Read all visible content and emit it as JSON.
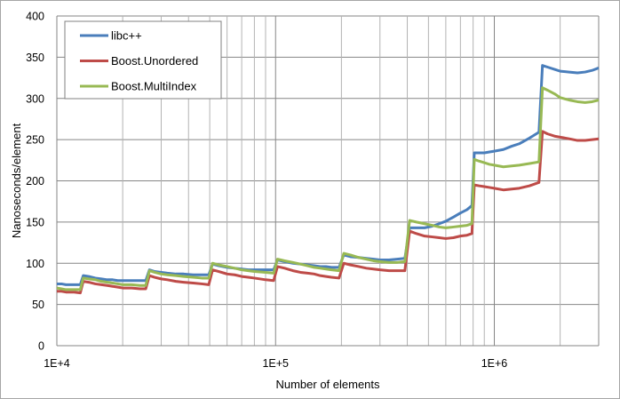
{
  "chart_data": {
    "type": "line",
    "title": "",
    "xlabel": "Number of elements",
    "ylabel": "Nanoseconds/element",
    "xscale": "log",
    "xlim": [
      10000,
      3000000
    ],
    "ylim": [
      0,
      400
    ],
    "yticks": [
      0,
      50,
      100,
      150,
      200,
      250,
      300,
      350,
      400
    ],
    "xtick_labels": [
      {
        "value": 10000,
        "label": "1E+4"
      },
      {
        "value": 100000,
        "label": "1E+5"
      },
      {
        "value": 1000000,
        "label": "1E+6"
      }
    ],
    "grid": true,
    "legend": "top-left",
    "series": [
      {
        "name": "libc++",
        "color": "#4a7ebb",
        "points": [
          [
            10000,
            75
          ],
          [
            10500,
            75
          ],
          [
            11000,
            74
          ],
          [
            12000,
            74
          ],
          [
            12800,
            74
          ],
          [
            13200,
            85
          ],
          [
            14000,
            84
          ],
          [
            15000,
            82
          ],
          [
            16000,
            81
          ],
          [
            17000,
            80
          ],
          [
            18000,
            80
          ],
          [
            19000,
            79
          ],
          [
            20000,
            79
          ],
          [
            22000,
            79
          ],
          [
            24000,
            79
          ],
          [
            25500,
            79
          ],
          [
            26500,
            92
          ],
          [
            28000,
            90
          ],
          [
            30000,
            89
          ],
          [
            32000,
            88
          ],
          [
            35000,
            87
          ],
          [
            38000,
            87
          ],
          [
            42000,
            86
          ],
          [
            46000,
            86
          ],
          [
            49500,
            86
          ],
          [
            51500,
            99
          ],
          [
            55000,
            97
          ],
          [
            60000,
            95
          ],
          [
            65000,
            94
          ],
          [
            70000,
            93
          ],
          [
            75000,
            92
          ],
          [
            80000,
            92
          ],
          [
            90000,
            92
          ],
          [
            98000,
            92
          ],
          [
            102000,
            104
          ],
          [
            110000,
            102
          ],
          [
            120000,
            100
          ],
          [
            130000,
            99
          ],
          [
            140000,
            98
          ],
          [
            150000,
            97
          ],
          [
            160000,
            96
          ],
          [
            170000,
            96
          ],
          [
            180000,
            95
          ],
          [
            195000,
            95
          ],
          [
            205000,
            110
          ],
          [
            220000,
            108
          ],
          [
            240000,
            107
          ],
          [
            260000,
            106
          ],
          [
            280000,
            105
          ],
          [
            300000,
            104
          ],
          [
            330000,
            104
          ],
          [
            360000,
            105
          ],
          [
            390000,
            106
          ],
          [
            410000,
            143
          ],
          [
            440000,
            143
          ],
          [
            480000,
            143
          ],
          [
            520000,
            145
          ],
          [
            560000,
            148
          ],
          [
            600000,
            151
          ],
          [
            650000,
            156
          ],
          [
            700000,
            161
          ],
          [
            750000,
            165
          ],
          [
            790000,
            170
          ],
          [
            810000,
            234
          ],
          [
            850000,
            234
          ],
          [
            900000,
            234
          ],
          [
            950000,
            235
          ],
          [
            1000000,
            236
          ],
          [
            1100000,
            238
          ],
          [
            1200000,
            242
          ],
          [
            1300000,
            245
          ],
          [
            1450000,
            252
          ],
          [
            1600000,
            259
          ],
          [
            1660000,
            340
          ],
          [
            1750000,
            338
          ],
          [
            1900000,
            335
          ],
          [
            2000000,
            333
          ],
          [
            2200000,
            332
          ],
          [
            2400000,
            331
          ],
          [
            2600000,
            332
          ],
          [
            2800000,
            334
          ],
          [
            3000000,
            337
          ]
        ]
      },
      {
        "name": "Boost.Unordered",
        "color": "#be4b48",
        "points": [
          [
            10000,
            66
          ],
          [
            10500,
            66
          ],
          [
            11000,
            65
          ],
          [
            12000,
            65
          ],
          [
            12800,
            64
          ],
          [
            13200,
            78
          ],
          [
            14000,
            77
          ],
          [
            15000,
            75
          ],
          [
            16000,
            74
          ],
          [
            17000,
            73
          ],
          [
            18000,
            72
          ],
          [
            19000,
            71
          ],
          [
            20000,
            70
          ],
          [
            22000,
            70
          ],
          [
            24000,
            69
          ],
          [
            25500,
            69
          ],
          [
            26500,
            85
          ],
          [
            28000,
            83
          ],
          [
            30000,
            81
          ],
          [
            32000,
            80
          ],
          [
            35000,
            78
          ],
          [
            38000,
            77
          ],
          [
            42000,
            76
          ],
          [
            46000,
            75
          ],
          [
            49500,
            74
          ],
          [
            51500,
            92
          ],
          [
            55000,
            90
          ],
          [
            60000,
            87
          ],
          [
            65000,
            86
          ],
          [
            70000,
            84
          ],
          [
            75000,
            83
          ],
          [
            80000,
            82
          ],
          [
            90000,
            80
          ],
          [
            98000,
            79
          ],
          [
            102000,
            96
          ],
          [
            110000,
            94
          ],
          [
            120000,
            91
          ],
          [
            130000,
            89
          ],
          [
            140000,
            88
          ],
          [
            150000,
            87
          ],
          [
            160000,
            85
          ],
          [
            170000,
            84
          ],
          [
            180000,
            83
          ],
          [
            195000,
            82
          ],
          [
            205000,
            100
          ],
          [
            220000,
            98
          ],
          [
            240000,
            96
          ],
          [
            260000,
            94
          ],
          [
            280000,
            93
          ],
          [
            300000,
            92
          ],
          [
            330000,
            91
          ],
          [
            360000,
            91
          ],
          [
            390000,
            91
          ],
          [
            410000,
            139
          ],
          [
            440000,
            136
          ],
          [
            480000,
            133
          ],
          [
            520000,
            132
          ],
          [
            560000,
            131
          ],
          [
            600000,
            130
          ],
          [
            650000,
            131
          ],
          [
            700000,
            133
          ],
          [
            750000,
            134
          ],
          [
            790000,
            136
          ],
          [
            810000,
            195
          ],
          [
            850000,
            194
          ],
          [
            900000,
            193
          ],
          [
            950000,
            192
          ],
          [
            1000000,
            191
          ],
          [
            1100000,
            189
          ],
          [
            1200000,
            190
          ],
          [
            1300000,
            191
          ],
          [
            1450000,
            194
          ],
          [
            1600000,
            198
          ],
          [
            1660000,
            260
          ],
          [
            1750000,
            257
          ],
          [
            1900000,
            254
          ],
          [
            2000000,
            253
          ],
          [
            2200000,
            251
          ],
          [
            2400000,
            249
          ],
          [
            2600000,
            249
          ],
          [
            2800000,
            250
          ],
          [
            3000000,
            251
          ]
        ]
      },
      {
        "name": "Boost.MultiIndex",
        "color": "#98b954",
        "points": [
          [
            10000,
            70
          ],
          [
            10500,
            69
          ],
          [
            11000,
            68
          ],
          [
            12000,
            68
          ],
          [
            12800,
            68
          ],
          [
            13200,
            82
          ],
          [
            14000,
            81
          ],
          [
            15000,
            80
          ],
          [
            16000,
            78
          ],
          [
            17000,
            77
          ],
          [
            18000,
            76
          ],
          [
            19000,
            75
          ],
          [
            20000,
            74
          ],
          [
            22000,
            74
          ],
          [
            24000,
            73
          ],
          [
            25500,
            73
          ],
          [
            26500,
            91
          ],
          [
            28000,
            89
          ],
          [
            30000,
            87
          ],
          [
            32000,
            86
          ],
          [
            35000,
            85
          ],
          [
            38000,
            84
          ],
          [
            42000,
            83
          ],
          [
            46000,
            82
          ],
          [
            49500,
            82
          ],
          [
            51500,
            100
          ],
          [
            55000,
            98
          ],
          [
            60000,
            96
          ],
          [
            65000,
            94
          ],
          [
            70000,
            92
          ],
          [
            75000,
            91
          ],
          [
            80000,
            90
          ],
          [
            90000,
            89
          ],
          [
            98000,
            88
          ],
          [
            102000,
            105
          ],
          [
            110000,
            103
          ],
          [
            120000,
            101
          ],
          [
            130000,
            99
          ],
          [
            140000,
            97
          ],
          [
            150000,
            95
          ],
          [
            160000,
            94
          ],
          [
            170000,
            93
          ],
          [
            180000,
            92
          ],
          [
            195000,
            91
          ],
          [
            205000,
            112
          ],
          [
            220000,
            110
          ],
          [
            240000,
            107
          ],
          [
            260000,
            105
          ],
          [
            280000,
            103
          ],
          [
            300000,
            102
          ],
          [
            330000,
            101
          ],
          [
            360000,
            101
          ],
          [
            390000,
            102
          ],
          [
            410000,
            152
          ],
          [
            440000,
            150
          ],
          [
            480000,
            148
          ],
          [
            520000,
            146
          ],
          [
            560000,
            144
          ],
          [
            600000,
            143
          ],
          [
            650000,
            144
          ],
          [
            700000,
            145
          ],
          [
            750000,
            146
          ],
          [
            790000,
            148
          ],
          [
            810000,
            226
          ],
          [
            850000,
            224
          ],
          [
            900000,
            222
          ],
          [
            950000,
            220
          ],
          [
            1000000,
            219
          ],
          [
            1100000,
            217
          ],
          [
            1200000,
            218
          ],
          [
            1300000,
            219
          ],
          [
            1450000,
            221
          ],
          [
            1600000,
            223
          ],
          [
            1660000,
            313
          ],
          [
            1750000,
            310
          ],
          [
            1900000,
            305
          ],
          [
            2000000,
            301
          ],
          [
            2200000,
            298
          ],
          [
            2400000,
            296
          ],
          [
            2600000,
            295
          ],
          [
            2800000,
            296
          ],
          [
            3000000,
            298
          ]
        ]
      }
    ]
  }
}
